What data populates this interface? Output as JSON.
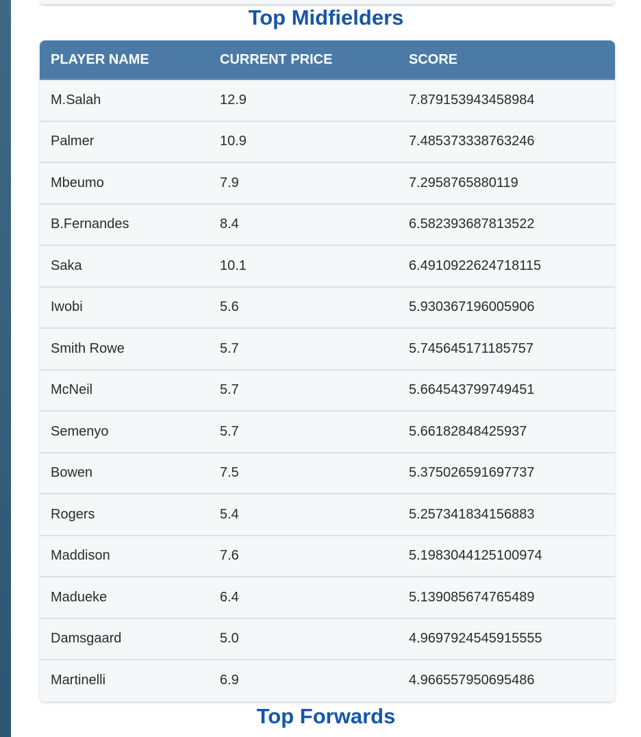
{
  "sections": {
    "midfielders_title": "Top Midfielders",
    "forwards_title": "Top Forwards"
  },
  "table": {
    "headers": [
      "PLAYER NAME",
      "CURRENT PRICE",
      "SCORE"
    ],
    "rows": [
      [
        "M.Salah",
        "12.9",
        "7.879153943458984"
      ],
      [
        "Palmer",
        "10.9",
        "7.485373338763246"
      ],
      [
        "Mbeumo",
        "7.9",
        "7.2958765880119"
      ],
      [
        "B.Fernandes",
        "8.4",
        "6.582393687813522"
      ],
      [
        "Saka",
        "10.1",
        "6.4910922624718115"
      ],
      [
        "Iwobi",
        "5.6",
        "5.930367196005906"
      ],
      [
        "Smith Rowe",
        "5.7",
        "5.745645171185757"
      ],
      [
        "McNeil",
        "5.7",
        "5.664543799749451"
      ],
      [
        "Semenyo",
        "5.7",
        "5.66182848425937"
      ],
      [
        "Bowen",
        "7.5",
        "5.375026591697737"
      ],
      [
        "Rogers",
        "5.4",
        "5.257341834156883"
      ],
      [
        "Maddison",
        "7.6",
        "5.1983044125100974"
      ],
      [
        "Madueke",
        "6.4",
        "5.139085674765489"
      ],
      [
        "Damsgaard",
        "5.0",
        "4.9697924545915555"
      ],
      [
        "Martinelli",
        "6.9",
        "4.966557950695486"
      ]
    ]
  },
  "colors": {
    "title": "#1557a8",
    "header_bg": "#4a7aa5",
    "row_bg": "#f6f7f9",
    "rail": "#2d5574"
  }
}
